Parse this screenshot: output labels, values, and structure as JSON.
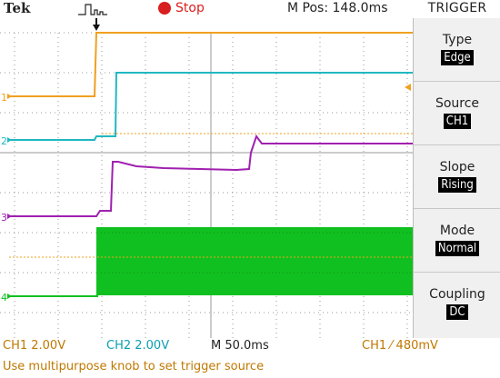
{
  "header": {
    "brand": "Tek",
    "acquisition_status": "Stop",
    "position_readout": "M Pos: 148.0ms",
    "menu_title": "TRIGGER"
  },
  "trigger_menu": {
    "items": [
      {
        "label": "Type",
        "value": "Edge"
      },
      {
        "label": "Source",
        "value": "CH1"
      },
      {
        "label": "Slope",
        "value": "Rising"
      },
      {
        "label": "Mode",
        "value": "Normal"
      },
      {
        "label": "Coupling",
        "value": "DC"
      }
    ]
  },
  "channels": [
    {
      "id": "1",
      "color": "#f0a020"
    },
    {
      "id": "2",
      "color": "#20b8c0"
    },
    {
      "id": "3",
      "color": "#a020b0"
    },
    {
      "id": "4",
      "color": "#10c020"
    }
  ],
  "status": {
    "ch1_scale": "CH1  2.00V",
    "ch2_scale": "CH2  2.00V",
    "timebase": "M 50.0ms",
    "trigger_readout": "CH1 ⁄ 480mV"
  },
  "message": "Use multipurpose knob to set trigger source",
  "colors": {
    "ch1": "#f0a020",
    "ch2": "#20b8c0",
    "ch3": "#a020b0",
    "ch4": "#10c020",
    "grid": "#9a9a9a",
    "stop": "#d81e1e"
  }
}
